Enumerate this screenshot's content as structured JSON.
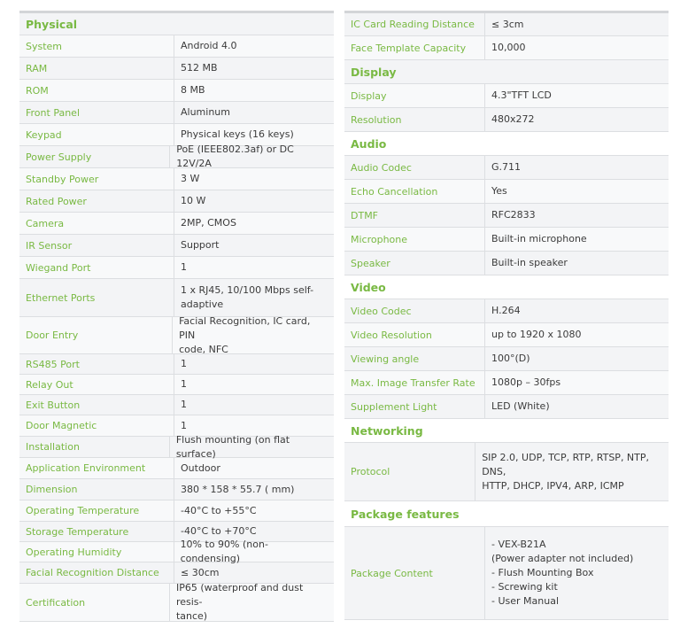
{
  "colors": {
    "label": "#79b943",
    "value": "#3b3b3b"
  },
  "left": [
    {
      "section": "Physical"
    },
    {
      "label": "System",
      "value": "Android 4.0"
    },
    {
      "label": "RAM",
      "value": "512 MB"
    },
    {
      "label": "ROM",
      "value": "8 MB"
    },
    {
      "label": "Front Panel",
      "value": "Aluminum"
    },
    {
      "label": "Keypad",
      "value": "Physical keys (16 keys)"
    },
    {
      "label": "Power Supply",
      "value": "PoE (IEEE802.3af) or DC 12V/2A"
    },
    {
      "label": "Standby Power",
      "value": "3 W"
    },
    {
      "label": "Rated Power",
      "value": "10 W"
    },
    {
      "label": "Camera",
      "value": "2MP, CMOS"
    },
    {
      "label": "IR Sensor",
      "value": "Support"
    },
    {
      "label": "Wiegand Port",
      "value": "1"
    },
    {
      "label": "Ethernet Ports",
      "value": "1 x RJ45, 10/100 Mbps self-\nadaptive"
    },
    {
      "label": "Door Entry",
      "value": "Facial Recognition, IC card, PIN\ncode, NFC"
    },
    {
      "label": "RS485 Port",
      "value": "1"
    },
    {
      "label": "Relay Out",
      "value": "1"
    },
    {
      "label": "Exit Button",
      "value": "1"
    },
    {
      "label": "Door Magnetic",
      "value": "1"
    },
    {
      "label": "Installation",
      "value": "Flush mounting (on flat surface)"
    },
    {
      "label": "Application Environment",
      "value": "Outdoor"
    },
    {
      "label": "Dimension",
      "value": "380 * 158 * 55.7 ( mm)"
    },
    {
      "label": "Operating Temperature",
      "value": "-40°C to +55°C"
    },
    {
      "label": "Storage Temperature",
      "value": "-40°C to +70°C"
    },
    {
      "label": "Operating Humidity",
      "value": "10% to 90% (non-condensing)"
    },
    {
      "label": "Facial Recognition Distance",
      "value": "≤ 30cm"
    },
    {
      "label": "Certification",
      "value": "IP65 (waterproof and dust resis-\ntance)"
    }
  ],
  "right": [
    {
      "label": "IC Card Reading Distance",
      "value": "≤ 3cm"
    },
    {
      "label": "Face Template Capacity",
      "value": "10,000"
    },
    {
      "section": "Display"
    },
    {
      "label": "Display",
      "value": "4.3\"TFT LCD"
    },
    {
      "label": "Resolution",
      "value": "480x272"
    },
    {
      "section": "Audio"
    },
    {
      "label": "Audio Codec",
      "value": "G.711"
    },
    {
      "label": "Echo Cancellation",
      "value": "Yes"
    },
    {
      "label": "DTMF",
      "value": "RFC2833"
    },
    {
      "label": "Microphone",
      "value": "Built-in microphone"
    },
    {
      "label": "Speaker",
      "value": "Built-in speaker"
    },
    {
      "section": "Video"
    },
    {
      "label": "Video Codec",
      "value": "H.264"
    },
    {
      "label": "Video Resolution",
      "value": "up to 1920 x 1080"
    },
    {
      "label": "Viewing angle",
      "value": "100°(D)"
    },
    {
      "label": "Max. Image Transfer Rate",
      "value": "1080p – 30fps"
    },
    {
      "label": "Supplement Light",
      "value": "LED (White)"
    },
    {
      "section": "Networking"
    },
    {
      "label": "Protocol",
      "value": "SIP 2.0, UDP, TCP, RTP, RTSP, NTP, DNS,\nHTTP, DHCP, IPV4, ARP, ICMP"
    },
    {
      "section": "Package features"
    },
    {
      "label": "Package Content",
      "value": "- VEX-B21A\n  (Power adapter not included)\n- Flush Mounting Box\n- Screwing kit\n- User Manual"
    }
  ]
}
